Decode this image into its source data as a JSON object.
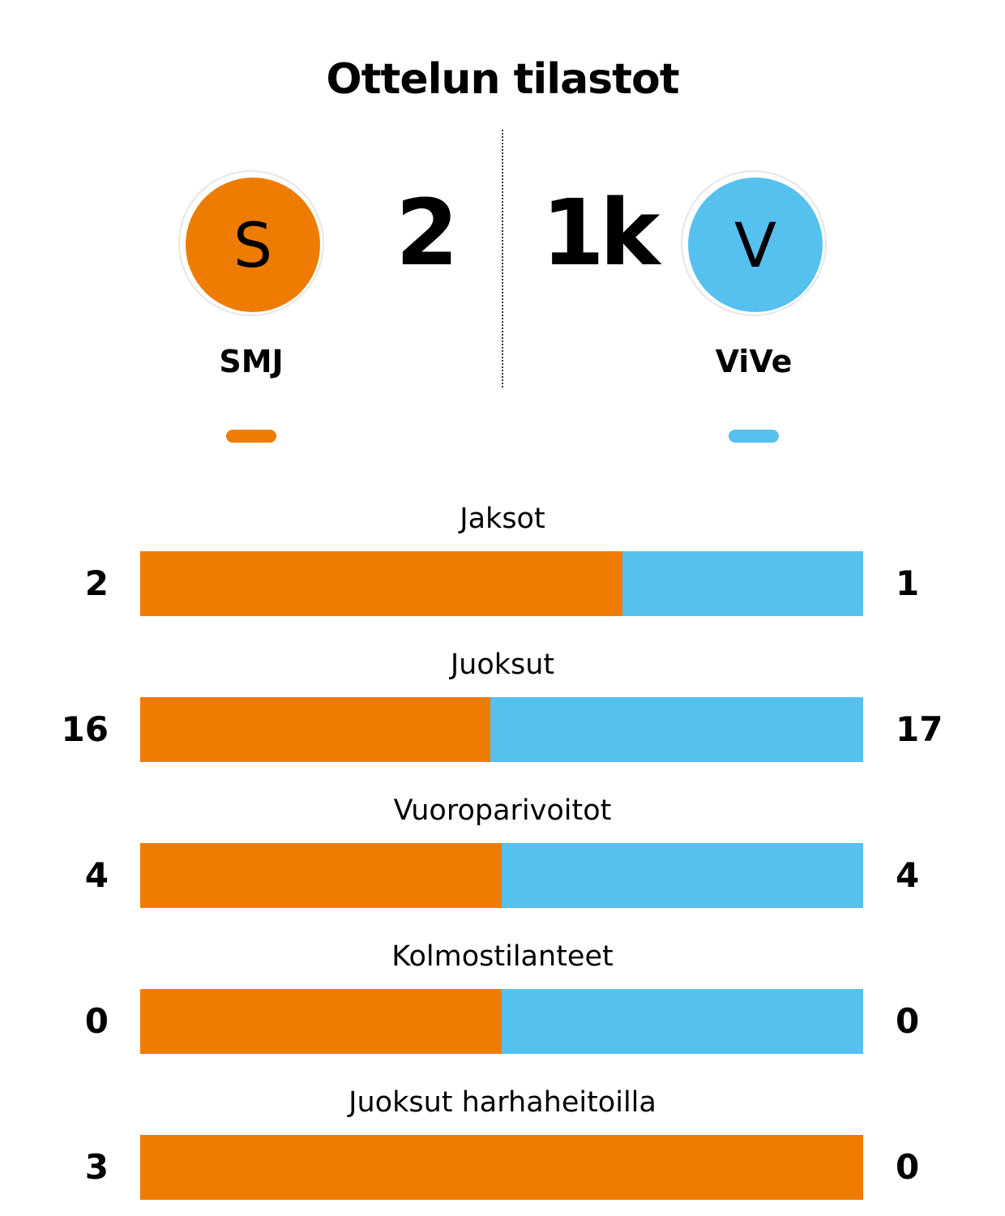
{
  "title": "Ottelun tilastot",
  "colors": {
    "home": "#ee7c03",
    "away": "#56c0ee"
  },
  "home": {
    "initial": "S",
    "name": "SMJ",
    "score": "2"
  },
  "away": {
    "initial": "V",
    "name": "ViVe",
    "score": "1k"
  },
  "chart_data": {
    "type": "bar",
    "categories": [
      "Jaksot",
      "Juoksut",
      "Vuoroparivoitot",
      "Kolmostilanteet",
      "Juoksut harhaheitoilla"
    ],
    "series": [
      {
        "name": "SMJ",
        "values": [
          2,
          16,
          4,
          0,
          3
        ]
      },
      {
        "name": "ViVe",
        "values": [
          1,
          17,
          4,
          0,
          0
        ]
      }
    ]
  }
}
